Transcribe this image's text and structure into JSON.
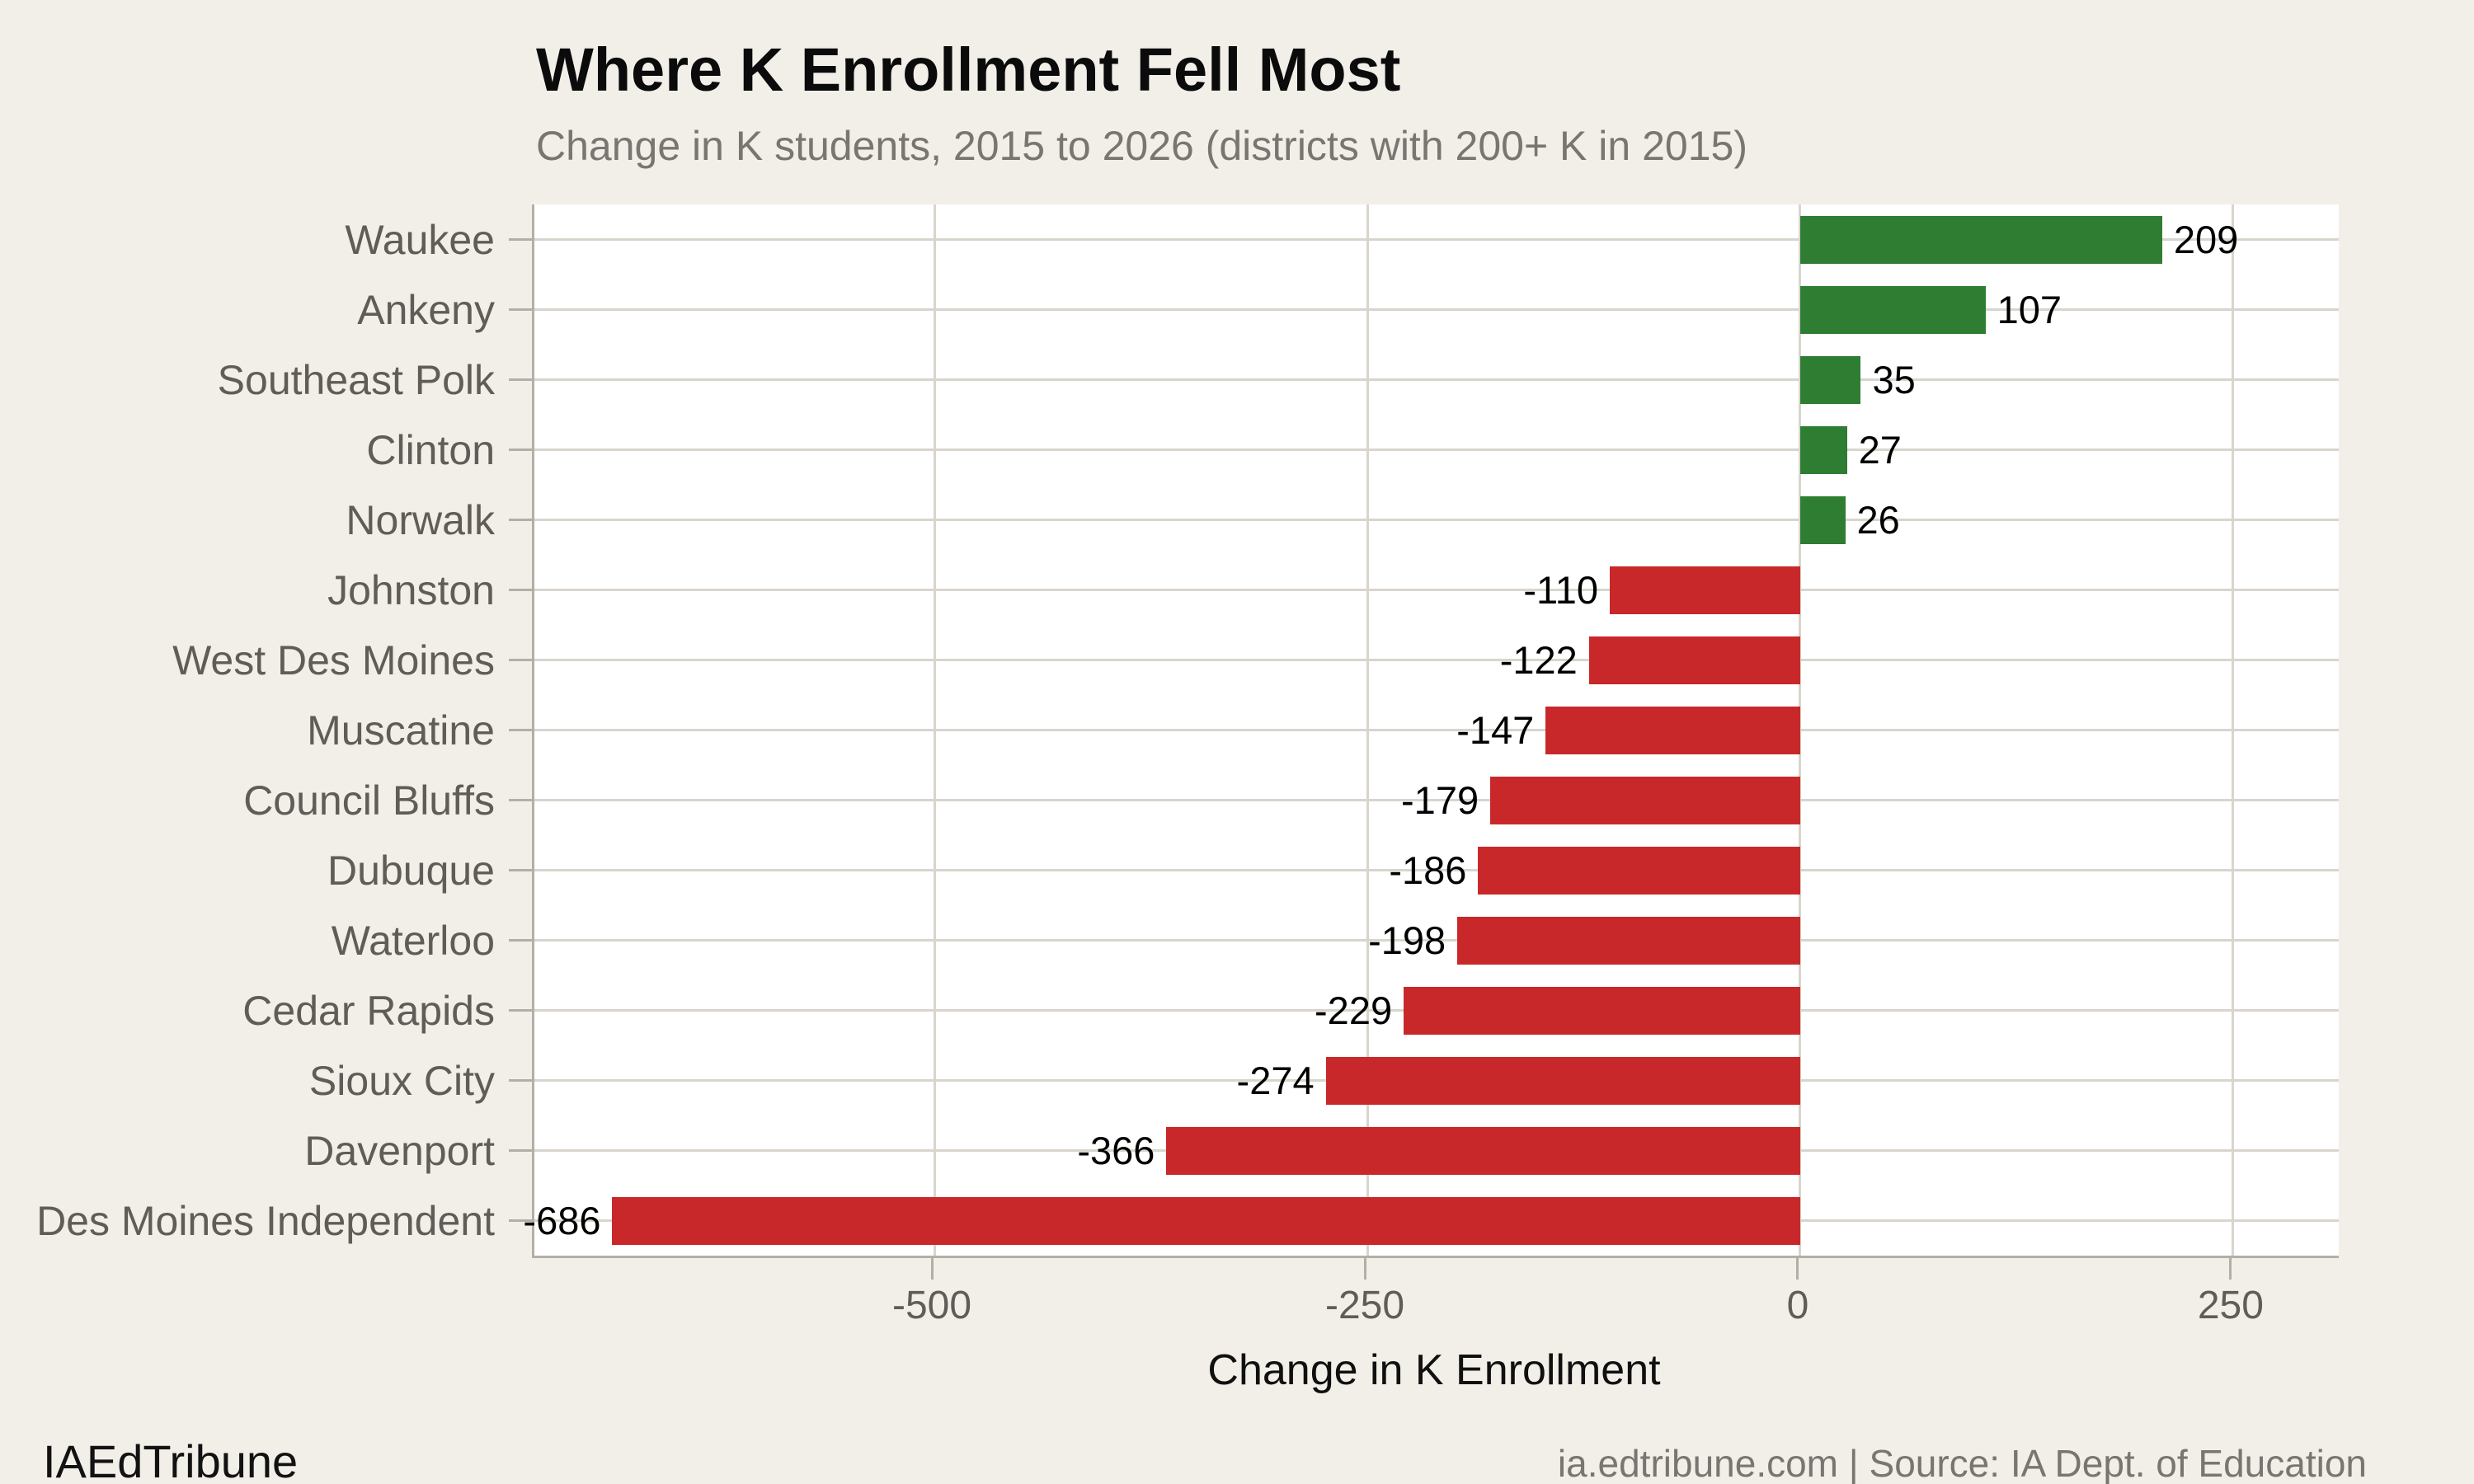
{
  "colors": {
    "background": "#f2efe9",
    "plot_background": "#ffffff",
    "gridline": "#d9d5cd",
    "spine": "#b3afa7",
    "axis_text": "#605d58",
    "subtitle_text": "#797570",
    "positive_bar": "#2e7d32",
    "negative_bar": "#c9282b",
    "value_text": "#000000"
  },
  "chart_data": {
    "type": "bar",
    "orientation": "horizontal",
    "title": "Where K Enrollment Fell Most",
    "subtitle": "Change in K students, 2015 to 2026 (districts with 200+ K in 2015)",
    "xlabel": "Change in K Enrollment",
    "categories": [
      "Waukee",
      "Ankeny",
      "Southeast Polk",
      "Clinton",
      "Norwalk",
      "Johnston",
      "West Des Moines",
      "Muscatine",
      "Council Bluffs",
      "Dubuque",
      "Waterloo",
      "Cedar Rapids",
      "Sioux City",
      "Davenport",
      "Des Moines Independent"
    ],
    "values": [
      209,
      107,
      35,
      27,
      26,
      -110,
      -122,
      -147,
      -179,
      -186,
      -198,
      -229,
      -274,
      -366,
      -686
    ],
    "value_labels": [
      "209",
      "107",
      "35",
      "27",
      "26",
      "-110",
      "-122",
      "-147",
      "-179",
      "-186",
      "-198",
      "-229",
      "-274",
      "-366",
      "-686"
    ],
    "xticks": [
      -500,
      -250,
      0,
      250
    ],
    "xtick_labels": [
      "-500",
      "-250",
      "0",
      "250"
    ],
    "xlim": [
      -731,
      311
    ],
    "grid": true,
    "legend": "none"
  },
  "footer": {
    "brand": "IAEdTribune",
    "source": "ia.edtribune.com | Source: IA Dept. of Education"
  }
}
